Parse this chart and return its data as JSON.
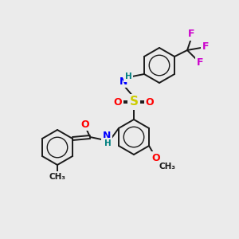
{
  "background_color": "#ebebeb",
  "bond_color": "#1a1a1a",
  "atom_colors": {
    "N": "#0000ff",
    "O": "#ff0000",
    "S": "#cccc00",
    "F": "#cc00cc",
    "H": "#008080",
    "C": "#1a1a1a"
  },
  "figsize": [
    3.0,
    3.0
  ],
  "dpi": 100
}
